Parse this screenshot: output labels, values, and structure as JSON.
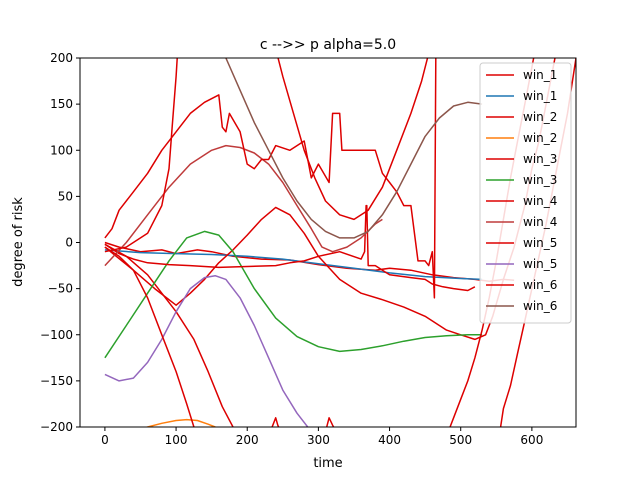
{
  "chart_data": {
    "type": "line",
    "title": "c -->> p  alpha=5.0",
    "xlabel": "time",
    "ylabel": "degree of risk",
    "xlim": [
      -35,
      662
    ],
    "ylim": [
      -200,
      200
    ],
    "xticks": [
      0,
      100,
      200,
      300,
      400,
      500,
      600
    ],
    "yticks": [
      -200,
      -150,
      -100,
      -50,
      0,
      50,
      100,
      150,
      200
    ],
    "grid": false,
    "legend_position": "top-right",
    "series": [
      {
        "name": "win_1",
        "color": "#dd0000",
        "points": [
          [
            0,
            0
          ],
          [
            20,
            -5
          ],
          [
            50,
            -10
          ],
          [
            80,
            -8
          ],
          [
            100,
            -12
          ],
          [
            130,
            -8
          ],
          [
            150,
            -10
          ],
          [
            180,
            -15
          ],
          [
            220,
            -18
          ],
          [
            260,
            -19
          ],
          [
            300,
            -24
          ],
          [
            340,
            -28
          ],
          [
            380,
            -30
          ],
          [
            400,
            -28
          ],
          [
            430,
            -30
          ],
          [
            460,
            -35
          ],
          [
            490,
            -38
          ],
          [
            520,
            -40
          ],
          [
            540,
            -42
          ],
          [
            560,
            -40
          ],
          [
            575,
            -41
          ]
        ]
      },
      {
        "name": "win_1",
        "color": "#1f77b4",
        "points": [
          [
            0,
            -8
          ],
          [
            50,
            -11
          ],
          [
            100,
            -12
          ],
          [
            150,
            -13
          ],
          [
            200,
            -15
          ],
          [
            250,
            -18
          ],
          [
            300,
            -23
          ],
          [
            350,
            -28
          ],
          [
            400,
            -33
          ],
          [
            450,
            -37
          ],
          [
            500,
            -39
          ],
          [
            530,
            -40
          ]
        ]
      },
      {
        "name": "win_2",
        "color": "#dd0000",
        "points": [
          [
            0,
            -2
          ],
          [
            30,
            -15
          ],
          [
            60,
            -35
          ],
          [
            80,
            -55
          ],
          [
            100,
            -75
          ],
          [
            125,
            -105
          ],
          [
            145,
            -140
          ],
          [
            165,
            -178
          ],
          [
            180,
            -200
          ]
        ]
      },
      {
        "name": "win_2",
        "color": "#ff7f0e",
        "points": [
          [
            40,
            -205
          ],
          [
            60,
            -200
          ],
          [
            80,
            -196
          ],
          [
            100,
            -193
          ],
          [
            115,
            -192
          ],
          [
            130,
            -193
          ],
          [
            145,
            -197
          ],
          [
            155,
            -200
          ],
          [
            165,
            -204
          ]
        ]
      },
      {
        "name": "win_3",
        "color": "#dd0000",
        "points": [
          [
            0,
            -5
          ],
          [
            40,
            -30
          ],
          [
            70,
            -50
          ],
          [
            100,
            -68
          ],
          [
            120,
            -55
          ],
          [
            140,
            -40
          ],
          [
            160,
            -22
          ],
          [
            180,
            -8
          ],
          [
            200,
            8
          ],
          [
            220,
            25
          ],
          [
            240,
            38
          ],
          [
            260,
            30
          ],
          [
            280,
            10
          ],
          [
            300,
            -15
          ],
          [
            330,
            -40
          ],
          [
            360,
            -55
          ],
          [
            390,
            -62
          ],
          [
            420,
            -70
          ],
          [
            450,
            -80
          ],
          [
            480,
            -95
          ],
          [
            500,
            -100
          ],
          [
            520,
            -105
          ],
          [
            535,
            -100
          ],
          [
            545,
            -80
          ],
          [
            560,
            -40
          ],
          [
            575,
            -5
          ],
          [
            590,
            40
          ],
          [
            600,
            80
          ],
          [
            610,
            110
          ],
          [
            620,
            150
          ],
          [
            630,
            190
          ],
          [
            640,
            230
          ]
        ]
      },
      {
        "name": "win_3",
        "color": "#2ca02c",
        "points": [
          [
            0,
            -125
          ],
          [
            30,
            -90
          ],
          [
            60,
            -55
          ],
          [
            90,
            -20
          ],
          [
            115,
            5
          ],
          [
            140,
            12
          ],
          [
            160,
            8
          ],
          [
            180,
            -10
          ],
          [
            210,
            -50
          ],
          [
            240,
            -82
          ],
          [
            270,
            -102
          ],
          [
            300,
            -113
          ],
          [
            330,
            -118
          ],
          [
            360,
            -116
          ],
          [
            390,
            -112
          ],
          [
            420,
            -107
          ],
          [
            450,
            -103
          ],
          [
            480,
            -101
          ],
          [
            510,
            -100
          ],
          [
            530,
            -100
          ]
        ]
      },
      {
        "name": "win_4",
        "color": "#dd0000",
        "points": [
          [
            0,
            -2
          ],
          [
            20,
            -12
          ],
          [
            40,
            -18
          ],
          [
            60,
            -22
          ],
          [
            90,
            -24
          ],
          [
            120,
            -25
          ],
          [
            160,
            -27
          ],
          [
            200,
            -26
          ],
          [
            240,
            -25
          ],
          [
            260,
            -22
          ],
          [
            280,
            -20
          ],
          [
            300,
            -15
          ],
          [
            330,
            -10
          ],
          [
            360,
            -18
          ],
          [
            365,
            -10
          ],
          [
            367,
            40
          ],
          [
            368,
            40
          ],
          [
            370,
            -25
          ],
          [
            380,
            -25
          ],
          [
            390,
            -30
          ],
          [
            400,
            -35
          ],
          [
            430,
            -38
          ],
          [
            450,
            -40
          ],
          [
            460,
            -45
          ],
          [
            475,
            -48
          ],
          [
            490,
            -50
          ],
          [
            510,
            -52
          ],
          [
            520,
            -48
          ]
        ]
      },
      {
        "name": "win_4",
        "color": "#bf3b3b",
        "points": [
          [
            0,
            -25
          ],
          [
            30,
            0
          ],
          [
            60,
            30
          ],
          [
            90,
            60
          ],
          [
            120,
            85
          ],
          [
            150,
            100
          ],
          [
            170,
            105
          ],
          [
            190,
            103
          ],
          [
            210,
            97
          ],
          [
            230,
            85
          ],
          [
            250,
            65
          ],
          [
            270,
            40
          ],
          [
            290,
            15
          ],
          [
            305,
            -5
          ],
          [
            320,
            -10
          ],
          [
            340,
            -5
          ],
          [
            360,
            5
          ],
          [
            380,
            20
          ],
          [
            390,
            25
          ]
        ]
      },
      {
        "name": "win_5",
        "color": "#dd0000",
        "points": [
          [
            0,
            5
          ],
          [
            10,
            15
          ],
          [
            20,
            35
          ],
          [
            40,
            55
          ],
          [
            60,
            75
          ],
          [
            80,
            100
          ],
          [
            100,
            120
          ],
          [
            120,
            140
          ],
          [
            140,
            152
          ],
          [
            160,
            160
          ],
          [
            165,
            125
          ],
          [
            170,
            120
          ],
          [
            175,
            140
          ],
          [
            190,
            120
          ],
          [
            200,
            85
          ],
          [
            210,
            80
          ],
          [
            220,
            90
          ],
          [
            230,
            90
          ],
          [
            240,
            105
          ],
          [
            260,
            100
          ],
          [
            280,
            110
          ],
          [
            290,
            70
          ],
          [
            300,
            85
          ],
          [
            315,
            65
          ],
          [
            320,
            140
          ],
          [
            330,
            140
          ],
          [
            333,
            100
          ],
          [
            340,
            100
          ],
          [
            350,
            100
          ],
          [
            360,
            100
          ],
          [
            370,
            100
          ],
          [
            380,
            100
          ],
          [
            390,
            75
          ],
          [
            400,
            65
          ],
          [
            410,
            55
          ],
          [
            420,
            40
          ],
          [
            430,
            40
          ],
          [
            440,
            -20
          ],
          [
            450,
            -20
          ],
          [
            455,
            -25
          ],
          [
            460,
            -10
          ],
          [
            463,
            -60
          ],
          [
            465,
            200
          ]
        ]
      },
      {
        "name": "win_5",
        "color": "#9467bd",
        "points": [
          [
            0,
            -143
          ],
          [
            20,
            -150
          ],
          [
            40,
            -147
          ],
          [
            60,
            -130
          ],
          [
            80,
            -105
          ],
          [
            100,
            -75
          ],
          [
            120,
            -50
          ],
          [
            140,
            -38
          ],
          [
            155,
            -36
          ],
          [
            170,
            -40
          ],
          [
            190,
            -60
          ],
          [
            210,
            -90
          ],
          [
            230,
            -125
          ],
          [
            250,
            -160
          ],
          [
            270,
            -185
          ],
          [
            285,
            -200
          ],
          [
            295,
            -215
          ]
        ]
      },
      {
        "name": "win_6",
        "color": "#dd0000",
        "points": [
          [
            0,
            -5
          ],
          [
            20,
            -15
          ],
          [
            40,
            -30
          ],
          [
            60,
            -60
          ],
          [
            80,
            -100
          ],
          [
            100,
            -140
          ],
          [
            115,
            -175
          ],
          [
            125,
            -200
          ]
        ]
      },
      {
        "name": "win_6",
        "color": "#8c564b",
        "points": [
          [
            150,
            240
          ],
          [
            170,
            200
          ],
          [
            190,
            165
          ],
          [
            210,
            130
          ],
          [
            230,
            100
          ],
          [
            250,
            70
          ],
          [
            270,
            45
          ],
          [
            290,
            25
          ],
          [
            310,
            12
          ],
          [
            330,
            5
          ],
          [
            350,
            5
          ],
          [
            370,
            12
          ],
          [
            390,
            30
          ],
          [
            410,
            55
          ],
          [
            430,
            85
          ],
          [
            450,
            115
          ],
          [
            470,
            135
          ],
          [
            490,
            148
          ],
          [
            510,
            152
          ],
          [
            530,
            150
          ]
        ]
      },
      {
        "name": "",
        "color": "#dd0000",
        "points": [
          [
            235,
            -200
          ],
          [
            240,
            -190
          ],
          [
            243,
            -198
          ],
          [
            247,
            -205
          ]
        ]
      },
      {
        "name": "",
        "color": "#dd0000",
        "points": [
          [
            310,
            -205
          ],
          [
            315,
            -190
          ],
          [
            320,
            -198
          ],
          [
            325,
            -205
          ]
        ]
      },
      {
        "name": "",
        "color": "#dd0000",
        "points": [
          [
            555,
            -205
          ],
          [
            560,
            -180
          ],
          [
            570,
            -155
          ],
          [
            580,
            -120
          ],
          [
            590,
            -85
          ],
          [
            600,
            -50
          ],
          [
            610,
            -15
          ],
          [
            620,
            20
          ],
          [
            630,
            60
          ],
          [
            640,
            100
          ],
          [
            650,
            140
          ],
          [
            662,
            200
          ]
        ]
      },
      {
        "name": "",
        "color": "#dd0000",
        "points": [
          [
            480,
            -210
          ],
          [
            490,
            -190
          ],
          [
            500,
            -170
          ],
          [
            510,
            -150
          ],
          [
            520,
            -125
          ],
          [
            530,
            -95
          ],
          [
            540,
            -60
          ],
          [
            550,
            -20
          ],
          [
            560,
            25
          ],
          [
            570,
            70
          ],
          [
            580,
            110
          ],
          [
            590,
            150
          ],
          [
            600,
            190
          ],
          [
            605,
            210
          ]
        ]
      },
      {
        "name": "",
        "color": "#dd0000",
        "points": [
          [
            0,
            -10
          ],
          [
            30,
            -5
          ],
          [
            60,
            10
          ],
          [
            80,
            40
          ],
          [
            90,
            80
          ],
          [
            95,
            130
          ],
          [
            100,
            180
          ],
          [
            102,
            205
          ]
        ]
      },
      {
        "name": "",
        "color": "#dd0000",
        "points": [
          [
            240,
            210
          ],
          [
            250,
            180
          ],
          [
            265,
            140
          ],
          [
            280,
            100
          ],
          [
            295,
            70
          ],
          [
            310,
            45
          ],
          [
            330,
            30
          ],
          [
            350,
            25
          ],
          [
            370,
            35
          ],
          [
            390,
            60
          ],
          [
            410,
            100
          ],
          [
            430,
            140
          ],
          [
            445,
            175
          ],
          [
            455,
            205
          ]
        ]
      }
    ]
  }
}
